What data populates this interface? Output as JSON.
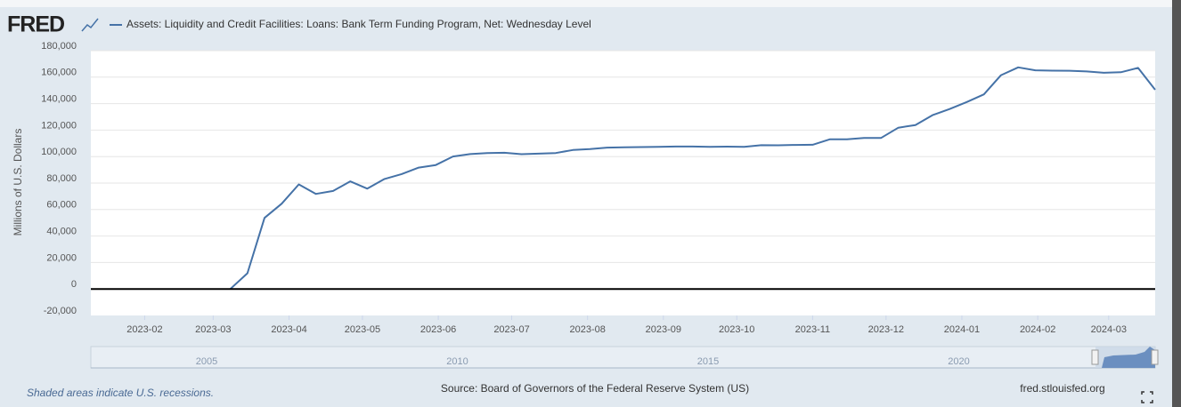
{
  "logo": "FRED",
  "chart_data": {
    "type": "line",
    "y_label": "Millions of U.S. Dollars",
    "x": [
      "2023-03-08",
      "2023-03-15",
      "2023-03-22",
      "2023-03-29",
      "2023-04-05",
      "2023-04-12",
      "2023-04-19",
      "2023-04-26",
      "2023-05-03",
      "2023-05-10",
      "2023-05-17",
      "2023-05-24",
      "2023-05-31",
      "2023-06-07",
      "2023-06-14",
      "2023-06-21",
      "2023-06-28",
      "2023-07-05",
      "2023-07-12",
      "2023-07-19",
      "2023-07-26",
      "2023-08-02",
      "2023-08-09",
      "2023-08-16",
      "2023-08-23",
      "2023-08-30",
      "2023-09-06",
      "2023-09-13",
      "2023-09-20",
      "2023-09-27",
      "2023-10-04",
      "2023-10-11",
      "2023-10-18",
      "2023-10-25",
      "2023-11-01",
      "2023-11-08",
      "2023-11-15",
      "2023-11-22",
      "2023-11-29",
      "2023-12-06",
      "2023-12-13",
      "2023-12-20",
      "2023-12-27",
      "2024-01-03",
      "2024-01-10",
      "2024-01-17",
      "2024-01-24",
      "2024-01-31",
      "2024-02-07",
      "2024-02-14",
      "2024-02-21",
      "2024-02-28",
      "2024-03-06",
      "2024-03-13",
      "2024-03-20"
    ],
    "series": [
      {
        "name": "Assets: Liquidity and Credit Facilities: Loans: Bank Term Funding Program, Net: Wednesday Level",
        "color": "#4572a7",
        "values": [
          0,
          11900,
          53700,
          64400,
          79000,
          71800,
          74000,
          81300,
          75800,
          83100,
          86800,
          91700,
          93600,
          100100,
          101900,
          102700,
          102900,
          101800,
          102200,
          102700,
          105000,
          105700,
          106800,
          107000,
          107200,
          107400,
          107600,
          107600,
          107400,
          107500,
          107400,
          108600,
          108500,
          108800,
          108900,
          113000,
          113000,
          114100,
          114100,
          121800,
          123800,
          131300,
          135900,
          141200,
          147000,
          161500,
          167400,
          165200,
          164900,
          164800,
          164300,
          163300,
          163700,
          167000,
          150500
        ]
      }
    ],
    "xlim": [
      "2023-01-10",
      "2024-03-20"
    ],
    "xticks": [
      {
        "value": "2023-02-01",
        "label": "2023-02"
      },
      {
        "value": "2023-03-01",
        "label": "2023-03"
      },
      {
        "value": "2023-04-01",
        "label": "2023-04"
      },
      {
        "value": "2023-05-01",
        "label": "2023-05"
      },
      {
        "value": "2023-06-01",
        "label": "2023-06"
      },
      {
        "value": "2023-07-01",
        "label": "2023-07"
      },
      {
        "value": "2023-08-01",
        "label": "2023-08"
      },
      {
        "value": "2023-09-01",
        "label": "2023-09"
      },
      {
        "value": "2023-10-01",
        "label": "2023-10"
      },
      {
        "value": "2023-11-01",
        "label": "2023-11"
      },
      {
        "value": "2023-12-01",
        "label": "2023-12"
      },
      {
        "value": "2024-01-01",
        "label": "2024-01"
      },
      {
        "value": "2024-02-01",
        "label": "2024-02"
      },
      {
        "value": "2024-03-01",
        "label": "2024-03"
      }
    ],
    "ylim": [
      -20000,
      180000
    ],
    "yticks": [
      {
        "value": -20000,
        "label": "-20,000"
      },
      0,
      {
        "value": 20000,
        "label": "20,000"
      },
      {
        "value": 40000,
        "label": "40,000"
      },
      {
        "value": 60000,
        "label": "60,000"
      },
      {
        "value": 80000,
        "label": "80,000"
      },
      {
        "value": 100000,
        "label": "100,000"
      },
      {
        "value": 120000,
        "label": "120,000"
      },
      {
        "value": 140000,
        "label": "140,000"
      },
      {
        "value": 160000,
        "label": "160,000"
      },
      {
        "value": 180000,
        "label": "180,000"
      }
    ],
    "grid": true
  },
  "navigator": {
    "labels": [
      "2005",
      "2010",
      "2015",
      "2020"
    ]
  },
  "footer": {
    "note": "Shaded areas indicate U.S. recessions.",
    "source": "Source: Board of Governors of the Federal Reserve System (US)",
    "site": "fred.stlouisfed.org"
  }
}
